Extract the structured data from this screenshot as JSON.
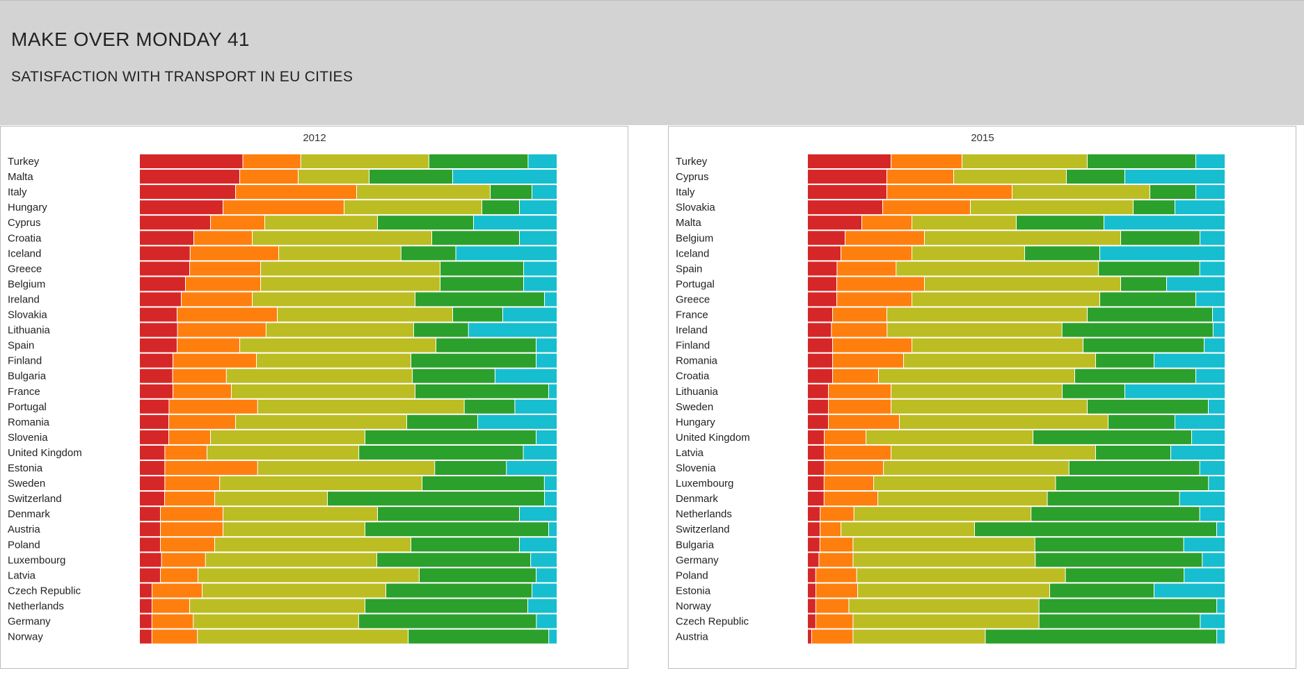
{
  "header": {
    "title": "MAKE OVER MONDAY 41",
    "subtitle": "SATISFACTION WITH TRANSPORT IN EU CITIES"
  },
  "colors": [
    "#d62728",
    "#ff7f0e",
    "#bcbd22",
    "#2ca02c",
    "#17becf"
  ],
  "chart_data": [
    {
      "type": "bar",
      "stacked": "100%",
      "orientation": "horizontal",
      "title": "2012",
      "categories": [
        "Turkey",
        "Malta",
        "Italy",
        "Hungary",
        "Cyprus",
        "Croatia",
        "Iceland",
        "Greece",
        "Belgium",
        "Ireland",
        "Slovakia",
        "Lithuania",
        "Spain",
        "Finland",
        "Bulgaria",
        "France",
        "Portugal",
        "Romania",
        "Slovenia",
        "United Kingdom",
        "Estonia",
        "Sweden",
        "Switzerland",
        "Denmark",
        "Austria",
        "Poland",
        "Luxembourg",
        "Latvia",
        "Czech Republic",
        "Netherlands",
        "Germany",
        "Norway"
      ],
      "rows": [
        [
          25,
          14,
          31,
          24,
          7
        ],
        [
          24,
          14,
          17,
          20,
          25
        ],
        [
          23,
          29,
          32,
          10,
          6
        ],
        [
          20,
          29,
          33,
          9,
          9
        ],
        [
          17,
          13,
          27,
          23,
          20
        ],
        [
          13,
          14,
          43,
          21,
          9
        ],
        [
          12,
          21,
          29,
          13,
          24
        ],
        [
          12,
          17,
          43,
          20,
          8
        ],
        [
          11,
          18,
          43,
          20,
          8
        ],
        [
          10,
          17,
          39,
          31,
          3
        ],
        [
          9,
          24,
          42,
          12,
          13
        ],
        [
          9,
          21,
          35,
          13,
          21
        ],
        [
          9,
          15,
          47,
          24,
          5
        ],
        [
          8,
          20,
          37,
          30,
          5
        ],
        [
          8,
          13,
          45,
          20,
          15
        ],
        [
          8,
          14,
          44,
          32,
          2
        ],
        [
          7,
          21,
          49,
          12,
          10
        ],
        [
          7,
          16,
          41,
          17,
          19
        ],
        [
          7,
          10,
          37,
          41,
          5
        ],
        [
          6,
          10,
          36,
          39,
          8
        ],
        [
          6,
          22,
          42,
          17,
          12
        ],
        [
          6,
          13,
          48,
          29,
          3
        ],
        [
          6,
          12,
          27,
          52,
          3
        ],
        [
          5,
          15,
          37,
          34,
          9
        ],
        [
          5,
          15,
          34,
          44,
          2
        ],
        [
          5,
          13,
          47,
          26,
          9
        ],
        [
          5,
          10,
          39,
          35,
          6
        ],
        [
          5,
          9,
          53,
          28,
          5
        ],
        [
          3,
          12,
          44,
          35,
          6
        ],
        [
          3,
          9,
          42,
          39,
          7
        ],
        [
          3,
          10,
          40,
          43,
          5
        ],
        [
          3,
          11,
          51,
          34,
          2
        ]
      ]
    },
    {
      "type": "bar",
      "stacked": "100%",
      "orientation": "horizontal",
      "title": "2015",
      "categories": [
        "Turkey",
        "Cyprus",
        "Italy",
        "Slovakia",
        "Malta",
        "Belgium",
        "Iceland",
        "Spain",
        "Portugal",
        "Greece",
        "France",
        "Ireland",
        "Finland",
        "Romania",
        "Croatia",
        "Lithuania",
        "Sweden",
        "Hungary",
        "United Kingdom",
        "Latvia",
        "Slovenia",
        "Luxembourg",
        "Denmark",
        "Netherlands",
        "Switzerland",
        "Bulgaria",
        "Germany",
        "Poland",
        "Estonia",
        "Norway",
        "Czech Republic",
        "Austria"
      ],
      "rows": [
        [
          20,
          17,
          30,
          26,
          7
        ],
        [
          19,
          16,
          27,
          14,
          24
        ],
        [
          19,
          30,
          33,
          11,
          7
        ],
        [
          18,
          21,
          39,
          10,
          12
        ],
        [
          13,
          12,
          25,
          21,
          29
        ],
        [
          9,
          19,
          47,
          19,
          6
        ],
        [
          8,
          17,
          27,
          18,
          30
        ],
        [
          7,
          14,
          48,
          24,
          6
        ],
        [
          7,
          21,
          47,
          11,
          14
        ],
        [
          7,
          18,
          45,
          23,
          7
        ],
        [
          6,
          13,
          48,
          30,
          3
        ],
        [
          6,
          14,
          44,
          38,
          3
        ],
        [
          6,
          19,
          41,
          29,
          5
        ],
        [
          6,
          17,
          46,
          14,
          17
        ],
        [
          6,
          11,
          47,
          29,
          7
        ],
        [
          5,
          15,
          41,
          15,
          24
        ],
        [
          5,
          15,
          47,
          29,
          4
        ],
        [
          5,
          17,
          50,
          16,
          12
        ],
        [
          4,
          10,
          40,
          38,
          8
        ],
        [
          4,
          16,
          49,
          18,
          13
        ],
        [
          4,
          14,
          44,
          31,
          6
        ],
        [
          4,
          12,
          44,
          37,
          4
        ],
        [
          4,
          13,
          41,
          32,
          11
        ],
        [
          3,
          8,
          42,
          40,
          6
        ],
        [
          3,
          5,
          32,
          58,
          2
        ],
        [
          3,
          8,
          44,
          36,
          10
        ],
        [
          3,
          9,
          48,
          44,
          6
        ],
        [
          2,
          10,
          51,
          29,
          10
        ],
        [
          2,
          10,
          46,
          25,
          17
        ],
        [
          2,
          8,
          46,
          43,
          2
        ],
        [
          2,
          9,
          45,
          39,
          6
        ],
        [
          1,
          10,
          32,
          56,
          2
        ]
      ]
    }
  ]
}
